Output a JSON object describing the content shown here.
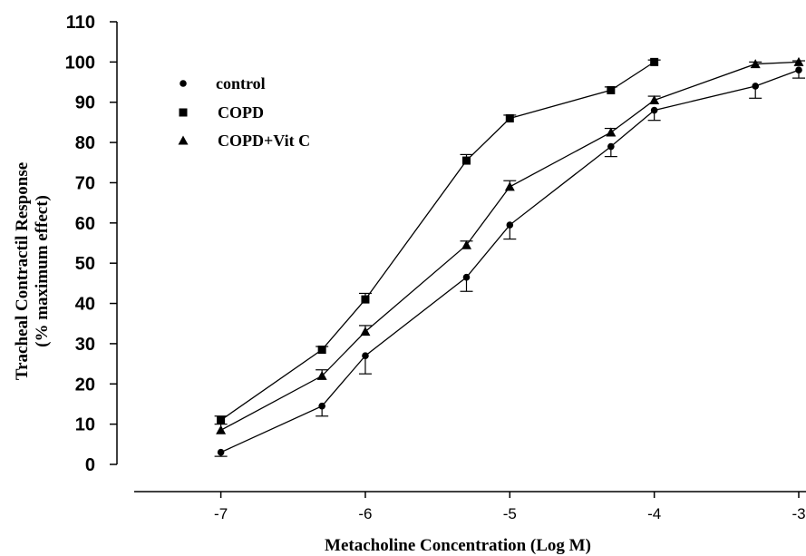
{
  "chart_data": {
    "type": "line",
    "title": "",
    "xlabel": "Metacholine Concentration (Log M)",
    "ylabel": [
      "Tracheal Contractil Response",
      "(% maximum effect)"
    ],
    "xlim": [
      -7.6,
      -3.0
    ],
    "ylim": [
      0,
      110
    ],
    "xticks": [
      -7,
      -6,
      -5,
      -4,
      -3
    ],
    "xtick_labels": [
      "-7",
      "-6",
      "-5",
      "-4",
      "-3"
    ],
    "yticks": [
      0,
      10,
      20,
      30,
      40,
      50,
      60,
      70,
      80,
      90,
      100,
      110
    ],
    "ytick_labels": [
      "0",
      "10",
      "20",
      "30",
      "40",
      "50",
      "60",
      "70",
      "80",
      "90",
      "100",
      "110"
    ],
    "grid": false,
    "legend_position": "top-left",
    "series": [
      {
        "name": "control",
        "marker": "circle",
        "x": [
          -7,
          -6.3,
          -6,
          -5.3,
          -5,
          -4.3,
          -4,
          -3.3,
          -3
        ],
        "y": [
          3,
          14.5,
          27,
          46.5,
          59.5,
          79,
          88,
          94,
          98
        ],
        "err": [
          1.0,
          2.5,
          4.5,
          3.5,
          3.5,
          2.5,
          2.5,
          3.0,
          2.0
        ]
      },
      {
        "name": "COPD",
        "marker": "square",
        "x": [
          -7,
          -6.3,
          -6,
          -5.3,
          -5,
          -4.3,
          -4
        ],
        "y": [
          11,
          28.5,
          41,
          75.5,
          86,
          93,
          100
        ],
        "err": [
          1.0,
          0.8,
          1.5,
          1.5,
          0.8,
          0.8,
          0.5
        ]
      },
      {
        "name": "COPD+Vit C",
        "marker": "triangle",
        "x": [
          -7,
          -6.3,
          -6,
          -5.3,
          -5,
          -4.3,
          -4,
          -3.3,
          -3
        ],
        "y": [
          8.5,
          22,
          33,
          54.5,
          69,
          82.5,
          90.5,
          99.5,
          100
        ],
        "err": [
          1.5,
          1.5,
          1.5,
          1.0,
          1.5,
          1.0,
          1.0,
          0.5,
          0.3
        ]
      }
    ]
  }
}
